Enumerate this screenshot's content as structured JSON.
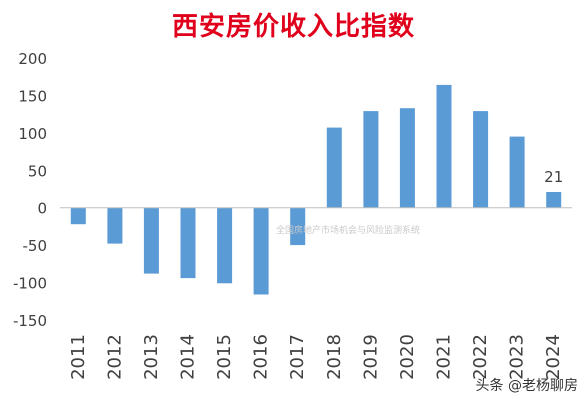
{
  "chart_data": {
    "type": "bar",
    "title": "西安房价收入比指数",
    "categories": [
      "2011",
      "2012",
      "2013",
      "2014",
      "2015",
      "2016",
      "2017",
      "2018",
      "2019",
      "2020",
      "2021",
      "2022",
      "2023",
      "2024"
    ],
    "values": [
      -22,
      -48,
      -88,
      -94,
      -101,
      -116,
      -50,
      107,
      129,
      133,
      164,
      129,
      95,
      21
    ],
    "ylim": [
      -150,
      200
    ],
    "yticks": [
      "-150",
      "-100",
      "-50",
      "0",
      "50",
      "100",
      "150",
      "200"
    ],
    "data_labels": [
      {
        "category": "2024",
        "label": "21"
      }
    ],
    "xlabel": "",
    "ylabel": "",
    "grid": false,
    "legend": "none",
    "bar_color": "#5b9bd5"
  },
  "watermark": "全国房地产市场机会与风险监测系统",
  "credit": {
    "text": "头条 @老杨聊房"
  },
  "colors": {
    "title": "#e0001b",
    "bar": "#5b9bd5",
    "axis": "#bfbfbf",
    "tick_text": "#404040"
  }
}
